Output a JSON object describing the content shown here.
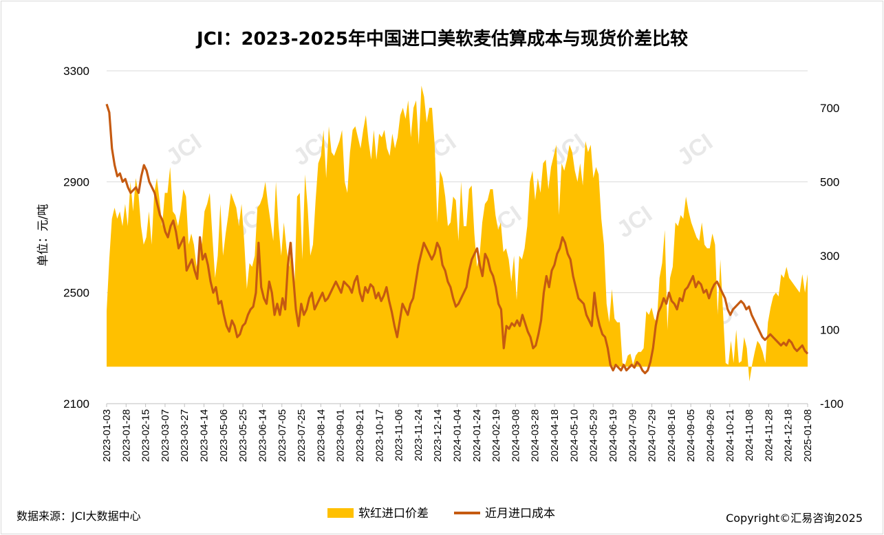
{
  "chart_data": {
    "type": "area+line",
    "title": "JCI：2023-2025年中国进口美软麦估算成本与现货价差比较",
    "ylabel": "单位：元/吨",
    "y_left": {
      "ticks": [
        2100,
        2500,
        2900,
        3300
      ],
      "ylim": [
        2100,
        3300
      ]
    },
    "y_right": {
      "ticks": [
        -100,
        100,
        300,
        500,
        700
      ],
      "ylim": [
        -100,
        800
      ]
    },
    "x_tick_labels": [
      "2023-01-03",
      "2023-01-28",
      "2023-02-15",
      "2023-03-07",
      "2023-03-27",
      "2023-04-14",
      "2023-05-06",
      "2023-05-25",
      "2023-06-14",
      "2023-07-05",
      "2023-07-25",
      "2023-08-14",
      "2023-09-01",
      "2023-09-21",
      "2023-10-17",
      "2023-11-06",
      "2023-11-24",
      "2023-12-14",
      "2024-01-04",
      "2024-01-24",
      "2024-02-19",
      "2024-03-08",
      "2024-03-28",
      "2024-04-18",
      "2024-05-10",
      "2024-05-29",
      "2024-06-19",
      "2024-07-09",
      "2024-07-29",
      "2024-08-16",
      "2024-09-05",
      "2024-09-26",
      "2024-10-21",
      "2024-11-08",
      "2024-11-28",
      "2024-12-18",
      "2025-01-08"
    ],
    "legend_position": "bottom",
    "grid": true,
    "series": [
      {
        "name": "软红进口价差",
        "axis": "right",
        "style": "area",
        "color": "#FFC000",
        "values": [
          150,
          290,
          400,
          430,
          400,
          420,
          380,
          440,
          380,
          500,
          420,
          510,
          470,
          380,
          330,
          350,
          420,
          330,
          470,
          510,
          450,
          380,
          470,
          470,
          540,
          420,
          410,
          380,
          420,
          480,
          460,
          330,
          360,
          330,
          270,
          310,
          330,
          420,
          440,
          470,
          350,
          240,
          300,
          440,
          300,
          360,
          410,
          470,
          450,
          430,
          380,
          440,
          340,
          210,
          280,
          270,
          300,
          430,
          440,
          460,
          500,
          440,
          390,
          340,
          500,
          380,
          300,
          390,
          320,
          270,
          340,
          210,
          460,
          470,
          290,
          520,
          430,
          300,
          330,
          450,
          550,
          570,
          640,
          510,
          650,
          580,
          570,
          590,
          610,
          640,
          500,
          470,
          580,
          640,
          650,
          620,
          590,
          640,
          680,
          610,
          560,
          640,
          560,
          630,
          620,
          640,
          590,
          570,
          630,
          590,
          620,
          680,
          700,
          670,
          720,
          620,
          700,
          720,
          600,
          760,
          730,
          660,
          700,
          700,
          600,
          390,
          530,
          510,
          460,
          380,
          390,
          460,
          450,
          340,
          500,
          380,
          380,
          480,
          490,
          360,
          270,
          300,
          390,
          440,
          450,
          480,
          480,
          410,
          370,
          390,
          310,
          320,
          290,
          230,
          300,
          180,
          300,
          290,
          320,
          380,
          500,
          530,
          450,
          510,
          470,
          550,
          560,
          480,
          540,
          570,
          600,
          410,
          550,
          530,
          560,
          600,
          580,
          530,
          500,
          550,
          490,
          610,
          580,
          600,
          510,
          540,
          520,
          400,
          330,
          170,
          120,
          210,
          130,
          120,
          120,
          10,
          5,
          30,
          35,
          5,
          30,
          40,
          40,
          50,
          150,
          140,
          160,
          130,
          120,
          240,
          280,
          370,
          100,
          240,
          270,
          390,
          380,
          410,
          400,
          460,
          420,
          390,
          370,
          350,
          340,
          390,
          330,
          320,
          320,
          360,
          330,
          140,
          290,
          150,
          10,
          5,
          70,
          10,
          100,
          10,
          15,
          80,
          50,
          -40,
          5,
          40,
          70,
          60,
          40,
          10,
          120,
          160,
          190,
          200,
          190,
          250,
          240,
          270,
          240,
          230,
          220,
          210,
          200,
          250,
          200,
          250
        ]
      },
      {
        "name": "近月进口成本",
        "axis": "left",
        "style": "line",
        "color": "#C55A11",
        "values": [
          3180,
          3150,
          3020,
          2960,
          2920,
          2930,
          2900,
          2910,
          2880,
          2860,
          2870,
          2880,
          2860,
          2920,
          2960,
          2940,
          2900,
          2880,
          2860,
          2820,
          2780,
          2760,
          2720,
          2700,
          2740,
          2760,
          2720,
          2660,
          2680,
          2700,
          2580,
          2600,
          2620,
          2580,
          2550,
          2700,
          2620,
          2640,
          2600,
          2540,
          2500,
          2520,
          2460,
          2470,
          2420,
          2380,
          2360,
          2400,
          2380,
          2340,
          2350,
          2380,
          2390,
          2420,
          2440,
          2450,
          2500,
          2680,
          2520,
          2480,
          2460,
          2540,
          2500,
          2420,
          2460,
          2420,
          2480,
          2440,
          2600,
          2680,
          2560,
          2440,
          2380,
          2460,
          2420,
          2440,
          2480,
          2500,
          2440,
          2460,
          2480,
          2500,
          2470,
          2480,
          2500,
          2520,
          2540,
          2520,
          2500,
          2540,
          2530,
          2520,
          2500,
          2540,
          2560,
          2500,
          2470,
          2520,
          2500,
          2530,
          2520,
          2480,
          2500,
          2470,
          2490,
          2520,
          2470,
          2430,
          2380,
          2340,
          2400,
          2460,
          2440,
          2420,
          2460,
          2480,
          2540,
          2600,
          2640,
          2680,
          2660,
          2640,
          2620,
          2640,
          2680,
          2660,
          2600,
          2580,
          2540,
          2520,
          2480,
          2450,
          2460,
          2480,
          2500,
          2520,
          2580,
          2620,
          2640,
          2660,
          2600,
          2560,
          2640,
          2620,
          2580,
          2560,
          2520,
          2460,
          2440,
          2300,
          2380,
          2370,
          2390,
          2380,
          2400,
          2380,
          2420,
          2390,
          2360,
          2340,
          2300,
          2310,
          2350,
          2400,
          2500,
          2560,
          2520,
          2580,
          2600,
          2640,
          2660,
          2700,
          2680,
          2640,
          2620,
          2560,
          2520,
          2480,
          2470,
          2460,
          2420,
          2400,
          2380,
          2500,
          2420,
          2380,
          2350,
          2340,
          2300,
          2240,
          2220,
          2240,
          2230,
          2220,
          2240,
          2220,
          2230,
          2240,
          2230,
          2250,
          2240,
          2220,
          2210,
          2220,
          2250,
          2300,
          2380,
          2430,
          2450,
          2480,
          2460,
          2500,
          2470,
          2460,
          2440,
          2480,
          2470,
          2510,
          2520,
          2540,
          2560,
          2520,
          2540,
          2530,
          2500,
          2510,
          2480,
          2510,
          2530,
          2540,
          2520,
          2500,
          2480,
          2440,
          2420,
          2440,
          2450,
          2460,
          2470,
          2460,
          2440,
          2450,
          2420,
          2400,
          2380,
          2360,
          2340,
          2330,
          2340,
          2350,
          2340,
          2330,
          2320,
          2310,
          2320,
          2310,
          2330,
          2320,
          2300,
          2290,
          2300,
          2310,
          2290,
          2280
        ]
      }
    ],
    "watermark": "JCI"
  },
  "footer": {
    "source": "数据来源：JCI大数据中心",
    "copyright": "Copyright©汇易咨询2025"
  }
}
